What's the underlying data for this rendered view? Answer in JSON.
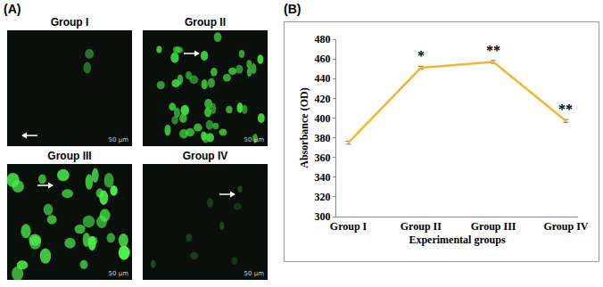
{
  "panel_a": {
    "label": "(A)",
    "images": [
      {
        "title": "Group I",
        "scale_bar": "50 μm"
      },
      {
        "title": "Group II",
        "scale_bar": "50 μm"
      },
      {
        "title": "Group III",
        "scale_bar": "50 μm"
      },
      {
        "title": "Group IV",
        "scale_bar": "50 μm"
      }
    ]
  },
  "panel_b": {
    "label": "(B)"
  },
  "chart_data": {
    "type": "line",
    "x_label": "Experimental groups",
    "y_label": "Absorbance (OD)",
    "categories": [
      "Group I",
      "Group II",
      "Group III",
      "Group IV"
    ],
    "values": [
      375,
      451,
      457,
      397
    ],
    "errors": [
      1.5,
      1.5,
      1.5,
      1.5
    ],
    "color": "#f2b632",
    "ylim": [
      300,
      480
    ],
    "yticks": [
      300,
      320,
      340,
      360,
      380,
      400,
      420,
      440,
      460,
      480
    ],
    "grid": false,
    "annotations": [
      {
        "x": "Group II",
        "text": "*"
      },
      {
        "x": "Group III",
        "text": "**"
      },
      {
        "x": "Group IV",
        "text": "**"
      }
    ]
  }
}
